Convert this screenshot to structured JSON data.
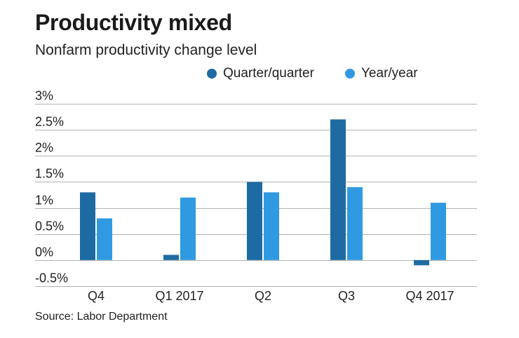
{
  "header": {
    "title": "Productivity mixed",
    "subtitle": "Nonfarm productivity change level"
  },
  "footer": {
    "source": "Source: Labor Department"
  },
  "colors": {
    "series_qq": "#1e6ba3",
    "series_yy": "#2f9ae2",
    "grid": "#b3b3b3",
    "text": "#222222"
  },
  "chart_data": {
    "type": "bar",
    "title": "Productivity mixed",
    "subtitle": "Nonfarm productivity change level",
    "xlabel": "",
    "ylabel": "",
    "categories": [
      "Q4",
      "Q1 2017",
      "Q2",
      "Q3",
      "Q4 2017"
    ],
    "series": [
      {
        "name": "Quarter/quarter",
        "values": [
          1.3,
          0.1,
          1.5,
          2.7,
          -0.1
        ]
      },
      {
        "name": "Year/year",
        "values": [
          0.8,
          1.2,
          1.3,
          1.4,
          1.1
        ]
      }
    ],
    "yticks": [
      {
        "value": 3,
        "label": "3%"
      },
      {
        "value": 2.5,
        "label": "2.5%"
      },
      {
        "value": 2,
        "label": "2%"
      },
      {
        "value": 1.5,
        "label": "1.5%"
      },
      {
        "value": 1,
        "label": "1%"
      },
      {
        "value": 0.5,
        "label": "0.5%"
      },
      {
        "value": 0,
        "label": "0%"
      },
      {
        "value": -0.5,
        "label": "-0.5%"
      }
    ],
    "ylim": [
      -0.5,
      3
    ],
    "grid": true,
    "legend_position": "top"
  }
}
